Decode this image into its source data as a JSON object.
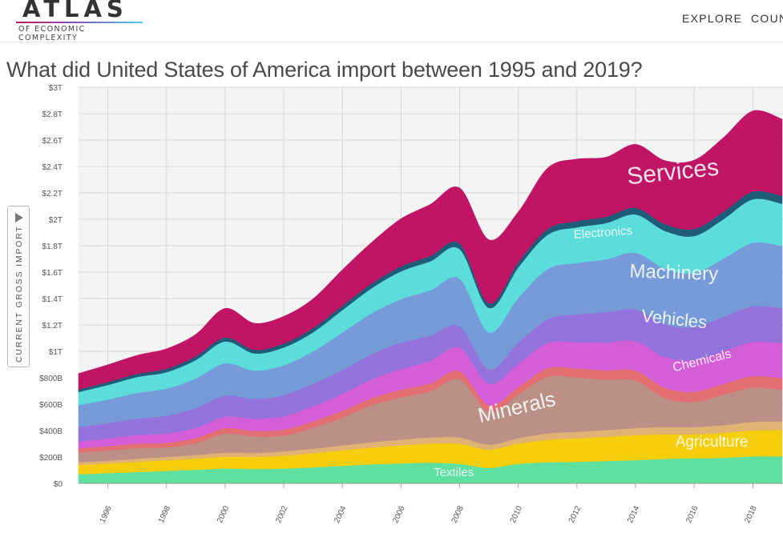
{
  "header": {
    "logo_title": "ATLAS",
    "logo_subtitle": "OF ECONOMIC COMPLEXITY",
    "nav": {
      "explore": "EXPLORE",
      "countries": "COUN"
    }
  },
  "page": {
    "title": "What did United States of America import between 1995 and 2019?",
    "y_axis_label": "CURRENT GROSS IMPORT"
  },
  "chart_data": {
    "type": "area",
    "stacked": true,
    "title": "What did United States of America import between 1995 and 2019?",
    "ylabel": "CURRENT GROSS IMPORT",
    "xlabel": "",
    "xlim": [
      1995,
      2019
    ],
    "ylim": [
      0,
      3000
    ],
    "value_unit": "billion USD",
    "grid": true,
    "x": [
      1995,
      1996,
      1997,
      1998,
      1999,
      2000,
      2001,
      2002,
      2003,
      2004,
      2005,
      2006,
      2007,
      2008,
      2009,
      2010,
      2011,
      2012,
      2013,
      2014,
      2015,
      2016,
      2017,
      2018,
      2019
    ],
    "x_tick_labels": [
      "1996",
      "1998",
      "2000",
      "2002",
      "2004",
      "2006",
      "2008",
      "2010",
      "2012",
      "2014",
      "2016",
      "2018"
    ],
    "x_tick_values": [
      1996,
      1998,
      2000,
      2002,
      2004,
      2006,
      2008,
      2010,
      2012,
      2014,
      2016,
      2018
    ],
    "y_tick_labels": [
      "$0",
      "$200B",
      "$400B",
      "$600B",
      "$800B",
      "$1T",
      "$1.2T",
      "$1.4T",
      "$1.6T",
      "$1.8T",
      "$2T",
      "$2.2T",
      "$2.4T",
      "$2.6T",
      "$2.8T",
      "$3T"
    ],
    "y_tick_values": [
      0,
      200,
      400,
      600,
      800,
      1000,
      1200,
      1400,
      1600,
      1800,
      2000,
      2200,
      2400,
      2600,
      2800,
      3000
    ],
    "series": [
      {
        "name": "Textiles",
        "color": "#5ee0a0",
        "values": [
          70,
          78,
          86,
          95,
          103,
          112,
          110,
          113,
          122,
          134,
          145,
          152,
          157,
          148,
          118,
          148,
          160,
          164,
          170,
          176,
          186,
          190,
          194,
          205,
          205
        ]
      },
      {
        "name": "Agriculture",
        "color": "#f6ce0c",
        "values": [
          70,
          73,
          77,
          81,
          85,
          90,
          91,
          98,
          107,
          117,
          127,
          137,
          145,
          152,
          138,
          153,
          170,
          178,
          183,
          190,
          186,
          182,
          188,
          197,
          200
        ]
      },
      {
        "name": "",
        "color": "#e0b273",
        "values": [
          20,
          22,
          24,
          26,
          28,
          30,
          30,
          32,
          34,
          37,
          40,
          43,
          46,
          48,
          38,
          42,
          48,
          50,
          52,
          54,
          55,
          56,
          60,
          64,
          65
        ]
      },
      {
        "name": "Minerals",
        "color": "#bb9087",
        "values": [
          75,
          78,
          80,
          70,
          90,
          145,
          125,
          120,
          160,
          210,
          280,
          320,
          350,
          440,
          250,
          330,
          430,
          410,
          380,
          360,
          220,
          190,
          230,
          260,
          240
        ]
      },
      {
        "name": "",
        "color": "#e46f72",
        "values": [
          30,
          32,
          35,
          36,
          38,
          42,
          42,
          45,
          48,
          52,
          55,
          58,
          60,
          62,
          50,
          58,
          65,
          68,
          72,
          75,
          78,
          78,
          82,
          86,
          88
        ]
      },
      {
        "name": "Chemicals",
        "color": "#d35ed8",
        "values": [
          52,
          58,
          64,
          70,
          76,
          86,
          92,
          102,
          114,
          128,
          142,
          156,
          170,
          180,
          160,
          175,
          190,
          200,
          210,
          222,
          232,
          238,
          248,
          260,
          265
        ]
      },
      {
        "name": "Vehicles",
        "color": "#9372dc",
        "values": [
          110,
          115,
          125,
          135,
          150,
          160,
          150,
          160,
          170,
          180,
          190,
          200,
          190,
          160,
          110,
          160,
          180,
          210,
          230,
          240,
          250,
          250,
          260,
          270,
          265
        ]
      },
      {
        "name": "Machinery",
        "color": "#779ad9",
        "values": [
          165,
          180,
          195,
          205,
          225,
          245,
          215,
          225,
          245,
          285,
          310,
          330,
          345,
          360,
          280,
          340,
          380,
          390,
          400,
          430,
          420,
          410,
          440,
          480,
          470
        ]
      },
      {
        "name": "Electronics",
        "color": "#5ddcdc",
        "values": [
          100,
          110,
          120,
          125,
          140,
          165,
          130,
          135,
          145,
          170,
          190,
          210,
          220,
          225,
          185,
          230,
          260,
          270,
          275,
          290,
          285,
          280,
          300,
          330,
          320
        ]
      },
      {
        "name": "",
        "color": "#1f5c78",
        "values": [
          20,
          22,
          24,
          26,
          28,
          30,
          28,
          30,
          32,
          34,
          36,
          38,
          40,
          42,
          36,
          40,
          44,
          46,
          48,
          50,
          52,
          54,
          56,
          58,
          60
        ]
      },
      {
        "name": "Services",
        "color": "#c01565",
        "values": [
          120,
          130,
          140,
          150,
          165,
          220,
          200,
          205,
          220,
          270,
          310,
          360,
          390,
          420,
          480,
          380,
          460,
          470,
          450,
          480,
          480,
          520,
          560,
          610,
          580
        ]
      }
    ],
    "annotations": [
      {
        "text": "Services",
        "x": 2015.3,
        "y": 2300,
        "angle": -6,
        "size": 30
      },
      {
        "text": "Electronics",
        "x": 2012.9,
        "y": 1870,
        "angle": -4,
        "size": 15
      },
      {
        "text": "Machinery",
        "x": 2015.3,
        "y": 1550,
        "angle": 2,
        "size": 24
      },
      {
        "text": "Vehicles",
        "x": 2015.3,
        "y": 1200,
        "angle": 6,
        "size": 22
      },
      {
        "text": "Chemicals",
        "x": 2016.3,
        "y": 900,
        "angle": -14,
        "size": 16
      },
      {
        "text": "Minerals",
        "x": 2010.0,
        "y": 525,
        "angle": -13,
        "size": 26
      },
      {
        "text": "Agriculture",
        "x": 2016.6,
        "y": 280,
        "angle": 0,
        "size": 19
      },
      {
        "text": "Textiles",
        "x": 2007.8,
        "y": 55,
        "angle": 0,
        "size": 15
      }
    ]
  }
}
